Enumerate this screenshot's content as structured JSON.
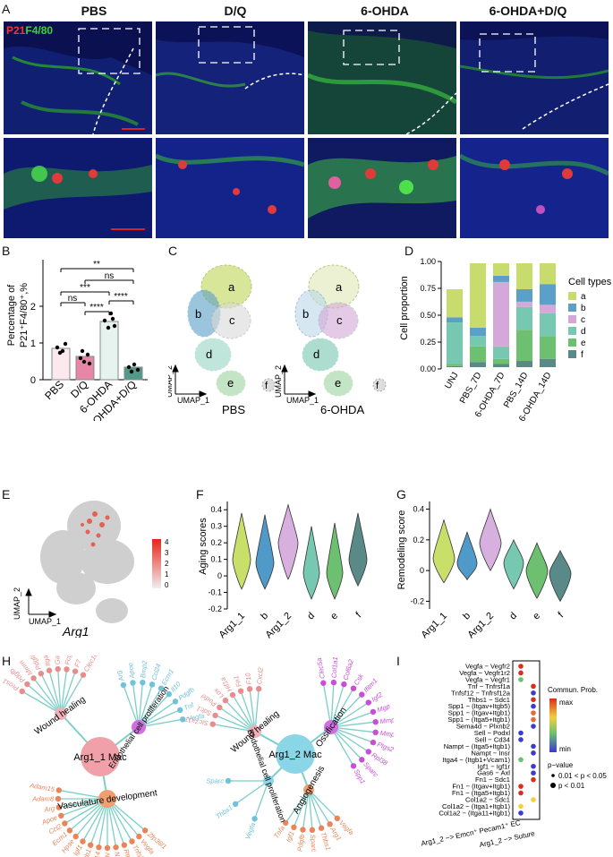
{
  "panels": {
    "A": "A",
    "B": "B",
    "C": "C",
    "D": "D",
    "E": "E",
    "F": "F",
    "G": "G",
    "H": "H",
    "I": "I"
  },
  "panelA": {
    "columns": [
      "PBS",
      "D/Q",
      "6-OHDA",
      "6-OHDA+D/Q"
    ],
    "stain_p21": "P21",
    "stain_f480": "F4/80"
  },
  "panelB": {
    "ylabel_line1": "Percentage of",
    "ylabel_line2": "P21⁺F4/80⁺,%",
    "yticks": [
      "0",
      "1",
      "2"
    ],
    "categories": [
      "PBS",
      "D/Q",
      "6-OHDA",
      "6-OHDA+D/Q"
    ],
    "sig": [
      "**",
      "ns",
      "***",
      "ns",
      "****",
      "****"
    ]
  },
  "panelC": {
    "labels_pbs": [
      "a",
      "b",
      "c",
      "d",
      "e",
      "f"
    ],
    "labels_ohda": [
      "a",
      "b",
      "c",
      "d",
      "e",
      "f"
    ],
    "cond1": "PBS",
    "cond2": "6-OHDA",
    "ux": "UMAP_1",
    "uy": "UMAP_2"
  },
  "panelD": {
    "ylabel": "Cell proportion",
    "yticks": [
      "0.00",
      "0.25",
      "0.50",
      "0.75",
      "1.00"
    ],
    "legend_title": "Cell types",
    "legend": [
      "a",
      "b",
      "c",
      "d",
      "e",
      "f"
    ],
    "colors": [
      "#c8dc6e",
      "#5aa0c8",
      "#d4a8d8",
      "#76c8b0",
      "#6cc070",
      "#5a8a88"
    ]
  },
  "panelE": {
    "gene": "Arg1",
    "ux": "UMAP_1",
    "uy": "UMAP_2",
    "scale": [
      "4",
      "3",
      "2",
      "1",
      "0"
    ]
  },
  "panelF": {
    "ylabel": "Aging scores",
    "yticks": [
      "0.4",
      "0.3",
      "0.2",
      "0.1",
      "0",
      "-0.1",
      "-0.2"
    ],
    "cats": [
      "Arg1_1",
      "b",
      "Arg1_2",
      "d",
      "e",
      "f"
    ]
  },
  "panelG": {
    "ylabel": "Remodeling score",
    "yticks": [
      "0.4",
      "0.2",
      "0",
      "-0.2"
    ],
    "cats": [
      "Arg1_1",
      "b",
      "Arg1_2",
      "d",
      "e",
      "f"
    ]
  },
  "panelH": {
    "left_center": "Arg1_1 Mac",
    "right_center": "Arg1_2 Mac",
    "left_nodes": [
      "Wound healing",
      "Endothelial cell proliferation",
      "Vasculature development"
    ],
    "right_nodes": [
      "Wound healing",
      "Ossification",
      "Endothelial cell proliferation",
      "Angiogenesis"
    ],
    "left_wh_genes": [
      "Pros1",
      "Pdgfb",
      "Mmrn",
      "Pdgfa",
      "Itga5",
      "Gas6",
      "Fcgr4",
      "F7",
      "Clec10a"
    ],
    "left_ec_genes": [
      "Arg",
      "Apoe",
      "Bmp2",
      "Ccl24",
      "Ecm1",
      "Il10",
      "Pdgfb",
      "Tnf",
      "Vegfa"
    ],
    "left_vd_genes": [
      "Zfp36l1",
      "Vegfa",
      "Tnfsf12",
      "Rtn4",
      "Nrp2",
      "Nrp1",
      "Mmp14",
      "Itgb1",
      "Igf1",
      "Hpse",
      "Ecm1",
      "Ccl2",
      "Apoe",
      "Arg",
      "Adam8",
      "Adam15"
    ],
    "right_wh_genes": [
      "Slc7a11",
      "Sdc1",
      "Podxl",
      "Lox",
      "Hif1a",
      "Fn1",
      "F10",
      "Cxcl2"
    ],
    "right_os_genes": [
      "Clec5a",
      "Col1a1",
      "Col6a2",
      "Csk",
      "Ifitm1",
      "Igf2",
      "Mgp",
      "Mmp13",
      "Mmp14",
      "Ptgs2",
      "Rpl38",
      "Sparc",
      "Spp1"
    ],
    "right_ec_genes": [
      "Vegfa",
      "Thbs1",
      "Sparc"
    ],
    "right_an_genes": [
      "Vegfa",
      "Arg1",
      "Thbs1",
      "Sparc",
      "Pdgfb",
      "Igf1",
      "Tnfa"
    ]
  },
  "panelI": {
    "pairs": [
      "Vegfa − Vegfr2",
      "Vegfa − Vegfr1r2",
      "Vegfa − Vegfr1",
      "Tnf − Tnfrsf1a",
      "Tnfsf12 − Tnfrsf12a",
      "Thbs1 − Sdc1",
      "Spp1 − (Itgav+Itgb5)",
      "Spp1 − (Itgav+Itgb1)",
      "Spp1 − (Itga5+Itgb1)",
      "Sema4d − Plxnb2",
      "Sell − Podxl",
      "Sell − Cd34",
      "Nampt − (Itga5+Itgb1)",
      "Nampt − Insr",
      "Itga4 − (Itgb1+Vcam1)",
      "Igf1 − Igf1r",
      "Gas6 − Axl",
      "Fn1 − Sdc1",
      "Fn1 − (Itgav+Itgb1)",
      "Fn1 − (Itga5+Itgb1)",
      "Col1a2 − Sdc1",
      "Col1a2 − (Itga1+Itgb1)",
      "Col1a2 − (Itga11+Itgb1)"
    ],
    "x1": "Arg1_2 −> Emcn⁺ Pecam1⁺ EC",
    "x2": "Arg1_2 −> Suture",
    "legend_title": "Commun. Prob.",
    "max": "max",
    "min": "min",
    "p_title": "p−value",
    "p1": "0.01 < p < 0.05",
    "p2": "p < 0.01"
  }
}
